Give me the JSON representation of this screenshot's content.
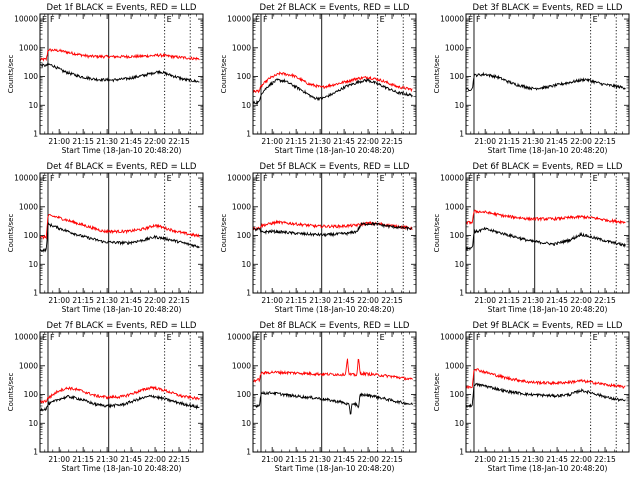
{
  "chart_data": {
    "type": "line",
    "x_tick_labels": [
      "21:00",
      "21:15",
      "21:30",
      "21:45",
      "22:00",
      "22:15"
    ],
    "x_ticks_minutes_after_start": [
      12,
      27,
      42,
      57,
      72,
      87
    ],
    "x_range_minutes_after_start": [
      0,
      102
    ],
    "y_scale": "log",
    "ylim": [
      1,
      15000
    ],
    "y_tick_labels": [
      "1",
      "10",
      "100",
      "1000",
      "10000"
    ],
    "ylabel": "Counts/sec",
    "xlabel": "Start Time (18-Jan-10 20:48:20)",
    "series_colors": {
      "events": "#000000",
      "lld": "#ff0000"
    },
    "markers": {
      "solid_minutes": [
        5,
        43
      ],
      "dotted_minutes": [
        78,
        94
      ]
    },
    "marker_labels": [
      "E",
      "F",
      "E"
    ],
    "panels": [
      {
        "title": "Det 1f  BLACK = Events, RED = LLD",
        "events": [
          [
            0,
            250
          ],
          [
            4,
            240
          ],
          [
            5,
            270
          ],
          [
            8,
            240
          ],
          [
            15,
            150
          ],
          [
            25,
            100
          ],
          [
            35,
            80
          ],
          [
            45,
            75
          ],
          [
            55,
            85
          ],
          [
            65,
            110
          ],
          [
            72,
            140
          ],
          [
            75,
            150
          ],
          [
            80,
            120
          ],
          [
            90,
            80
          ],
          [
            100,
            65
          ]
        ],
        "lld": [
          [
            0,
            390
          ],
          [
            4,
            400
          ],
          [
            5,
            850
          ],
          [
            12,
            800
          ],
          [
            20,
            650
          ],
          [
            30,
            510
          ],
          [
            45,
            490
          ],
          [
            60,
            500
          ],
          [
            70,
            530
          ],
          [
            75,
            560
          ],
          [
            85,
            480
          ],
          [
            100,
            410
          ]
        ],
        "markers_shown": [
          "solid",
          "solid",
          "dotted",
          "dotted"
        ],
        "y_axis_label": true
      },
      {
        "title": "Det 2f  BLACK = Events, RED = LLD",
        "events": [
          [
            0,
            12
          ],
          [
            4,
            13
          ],
          [
            5,
            25
          ],
          [
            10,
            50
          ],
          [
            15,
            75
          ],
          [
            20,
            70
          ],
          [
            30,
            35
          ],
          [
            38,
            18
          ],
          [
            43,
            17
          ],
          [
            50,
            25
          ],
          [
            58,
            45
          ],
          [
            68,
            70
          ],
          [
            72,
            75
          ],
          [
            80,
            50
          ],
          [
            90,
            28
          ],
          [
            100,
            22
          ]
        ],
        "lld": [
          [
            0,
            30
          ],
          [
            4,
            32
          ],
          [
            5,
            45
          ],
          [
            10,
            85
          ],
          [
            17,
            130
          ],
          [
            25,
            110
          ],
          [
            35,
            55
          ],
          [
            43,
            42
          ],
          [
            55,
            60
          ],
          [
            65,
            85
          ],
          [
            72,
            95
          ],
          [
            80,
            75
          ],
          [
            90,
            45
          ],
          [
            100,
            35
          ]
        ],
        "markers_shown": [
          "solid",
          "solid",
          "dotted",
          "dotted"
        ],
        "y_axis_label": true
      },
      {
        "title": "Det 3f  BLACK = Events, RED = LLD",
        "events": [
          [
            0,
            35
          ],
          [
            4,
            37
          ],
          [
            5,
            110
          ],
          [
            12,
            120
          ],
          [
            20,
            95
          ],
          [
            30,
            55
          ],
          [
            42,
            38
          ],
          [
            50,
            42
          ],
          [
            60,
            55
          ],
          [
            72,
            75
          ],
          [
            75,
            80
          ],
          [
            85,
            55
          ],
          [
            100,
            40
          ]
        ],
        "lld": [],
        "markers_shown": [
          "solid",
          "dotted",
          "dotted"
        ],
        "y_axis_label": true
      },
      {
        "title": "Det 4f  BLACK = Events, RED = LLD",
        "events": [
          [
            0,
            30
          ],
          [
            4,
            32
          ],
          [
            5,
            250
          ],
          [
            12,
            180
          ],
          [
            25,
            100
          ],
          [
            40,
            60
          ],
          [
            55,
            55
          ],
          [
            65,
            70
          ],
          [
            72,
            90
          ],
          [
            80,
            75
          ],
          [
            90,
            55
          ],
          [
            100,
            40
          ]
        ],
        "lld": [
          [
            0,
            85
          ],
          [
            4,
            90
          ],
          [
            5,
            500
          ],
          [
            10,
            450
          ],
          [
            25,
            250
          ],
          [
            40,
            140
          ],
          [
            55,
            140
          ],
          [
            65,
            170
          ],
          [
            72,
            230
          ],
          [
            80,
            170
          ],
          [
            90,
            120
          ],
          [
            100,
            95
          ]
        ],
        "markers_shown": [
          "solid",
          "solid",
          "dotted",
          "dotted"
        ],
        "y_axis_label": true
      },
      {
        "title": "Det 5f  BLACK = Events, RED = LLD",
        "events": [
          [
            0,
            160
          ],
          [
            4,
            165
          ],
          [
            5,
            130
          ],
          [
            12,
            140
          ],
          [
            20,
            130
          ],
          [
            30,
            115
          ],
          [
            45,
            105
          ],
          [
            60,
            120
          ],
          [
            65,
            140
          ],
          [
            68,
            250
          ],
          [
            75,
            260
          ],
          [
            85,
            210
          ],
          [
            100,
            170
          ]
        ],
        "lld": [
          [
            0,
            180
          ],
          [
            4,
            180
          ],
          [
            5,
            220
          ],
          [
            15,
            290
          ],
          [
            25,
            260
          ],
          [
            40,
            210
          ],
          [
            55,
            210
          ],
          [
            65,
            230
          ],
          [
            72,
            270
          ],
          [
            80,
            250
          ],
          [
            90,
            210
          ],
          [
            100,
            180
          ]
        ],
        "markers_shown": [
          "solid",
          "solid",
          "dotted",
          "dotted"
        ],
        "y_axis_label": true
      },
      {
        "title": "Det 6f  BLACK = Events, RED = LLD",
        "events": [
          [
            0,
            35
          ],
          [
            4,
            38
          ],
          [
            5,
            130
          ],
          [
            12,
            170
          ],
          [
            25,
            110
          ],
          [
            40,
            65
          ],
          [
            55,
            50
          ],
          [
            65,
            70
          ],
          [
            72,
            110
          ],
          [
            78,
            90
          ],
          [
            90,
            60
          ],
          [
            100,
            45
          ]
        ],
        "lld": [
          [
            0,
            280
          ],
          [
            4,
            290
          ],
          [
            5,
            700
          ],
          [
            12,
            650
          ],
          [
            25,
            470
          ],
          [
            40,
            380
          ],
          [
            55,
            380
          ],
          [
            65,
            420
          ],
          [
            72,
            450
          ],
          [
            80,
            410
          ],
          [
            90,
            330
          ],
          [
            100,
            290
          ]
        ],
        "markers_shown": [
          "solid",
          "solid",
          "dotted",
          "dotted"
        ],
        "y_axis_label": true
      },
      {
        "title": "Det 7f  BLACK = Events, RED = LLD",
        "events": [
          [
            0,
            30
          ],
          [
            4,
            32
          ],
          [
            5,
            45
          ],
          [
            12,
            70
          ],
          [
            18,
            85
          ],
          [
            25,
            70
          ],
          [
            35,
            45
          ],
          [
            43,
            40
          ],
          [
            52,
            45
          ],
          [
            62,
            70
          ],
          [
            70,
            90
          ],
          [
            78,
            70
          ],
          [
            88,
            50
          ],
          [
            100,
            35
          ]
        ],
        "lld": [
          [
            0,
            55
          ],
          [
            4,
            60
          ],
          [
            5,
            75
          ],
          [
            12,
            140
          ],
          [
            18,
            170
          ],
          [
            25,
            140
          ],
          [
            35,
            90
          ],
          [
            43,
            80
          ],
          [
            52,
            85
          ],
          [
            62,
            130
          ],
          [
            70,
            180
          ],
          [
            78,
            140
          ],
          [
            88,
            90
          ],
          [
            100,
            70
          ]
        ],
        "markers_shown": [
          "solid",
          "solid",
          "dotted",
          "dotted"
        ],
        "y_axis_label": true
      },
      {
        "title": "Det 8f  BLACK = Events, RED = LLD",
        "events": [
          [
            0,
            40
          ],
          [
            4,
            42
          ],
          [
            5,
            110
          ],
          [
            12,
            115
          ],
          [
            25,
            90
          ],
          [
            40,
            75
          ],
          [
            55,
            55
          ],
          [
            60,
            45
          ],
          [
            61,
            18
          ],
          [
            62,
            50
          ],
          [
            65,
            45
          ],
          [
            66,
            30
          ],
          [
            67,
            100
          ],
          [
            75,
            90
          ],
          [
            88,
            60
          ],
          [
            100,
            45
          ]
        ],
        "lld": [
          [
            0,
            300
          ],
          [
            4,
            330
          ],
          [
            5,
            550
          ],
          [
            12,
            600
          ],
          [
            25,
            570
          ],
          [
            40,
            520
          ],
          [
            55,
            500
          ],
          [
            58,
            520
          ],
          [
            59,
            2000
          ],
          [
            60,
            500
          ],
          [
            65,
            480
          ],
          [
            66,
            2000
          ],
          [
            67,
            550
          ],
          [
            75,
            500
          ],
          [
            88,
            420
          ],
          [
            100,
            330
          ]
        ],
        "markers_shown": [
          "solid",
          "solid",
          "dotted",
          "dotted"
        ],
        "y_axis_label": false
      },
      {
        "title": "Det 9f  BLACK = Events, RED = LLD",
        "events": [
          [
            0,
            40
          ],
          [
            4,
            42
          ],
          [
            5,
            230
          ],
          [
            12,
            200
          ],
          [
            25,
            130
          ],
          [
            40,
            100
          ],
          [
            55,
            90
          ],
          [
            65,
            100
          ],
          [
            72,
            140
          ],
          [
            80,
            110
          ],
          [
            90,
            75
          ],
          [
            100,
            60
          ]
        ],
        "lld": [
          [
            0,
            180
          ],
          [
            4,
            190
          ],
          [
            5,
            800
          ],
          [
            12,
            600
          ],
          [
            25,
            380
          ],
          [
            40,
            270
          ],
          [
            55,
            250
          ],
          [
            65,
            270
          ],
          [
            72,
            300
          ],
          [
            80,
            260
          ],
          [
            90,
            210
          ],
          [
            100,
            180
          ]
        ],
        "markers_shown": [
          "solid",
          "dotted",
          "dotted"
        ],
        "y_axis_label": true
      }
    ]
  }
}
